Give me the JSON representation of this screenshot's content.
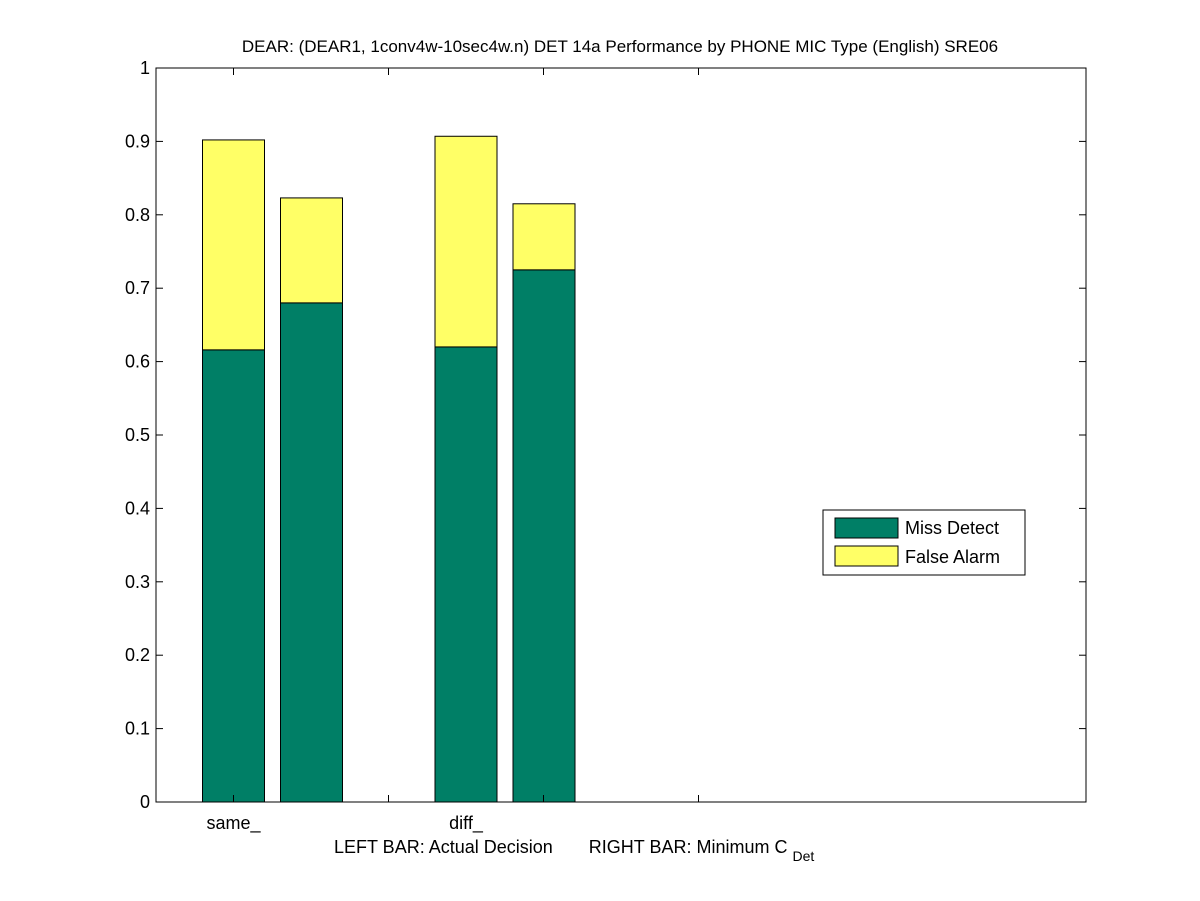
{
  "chart_data": {
    "type": "bar",
    "stacked": true,
    "title": "DEAR: (DEAR1, 1conv4w-10sec4w.n) DET 14a Performance by PHONE MIC Type (English) SRE06",
    "categories": [
      "same_",
      "diff_"
    ],
    "bar_roles": [
      "Actual Decision",
      "Minimum C_Det"
    ],
    "series": [
      {
        "name": "Miss Detect",
        "color": "#007f66",
        "values": [
          [
            0.616,
            0.68
          ],
          [
            0.62,
            0.725
          ]
        ]
      },
      {
        "name": "False Alarm",
        "color": "#ffff66",
        "values": [
          [
            0.286,
            0.143
          ],
          [
            0.287,
            0.09
          ]
        ]
      }
    ],
    "ylim": [
      0,
      1
    ],
    "yticks": [
      "0",
      "0.1",
      "0.2",
      "0.3",
      "0.4",
      "0.5",
      "0.6",
      "0.7",
      "0.8",
      "0.9",
      "1"
    ],
    "xlabel": {
      "left": "LEFT BAR: Actual Decision",
      "right": "RIGHT BAR: Minimum C",
      "right_subscript": "Det"
    },
    "legend_placement": "center-right"
  }
}
